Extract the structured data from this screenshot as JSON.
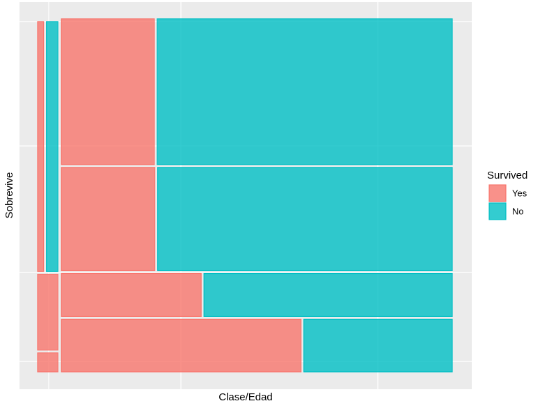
{
  "chart_data": {
    "type": "mosaic",
    "x_label": "Clase/Edad",
    "y_label": "Sobrevive",
    "legend_title": "Survived",
    "categories": [
      null,
      null
    ],
    "subcategories": [
      null,
      null,
      null,
      null
    ],
    "series": [
      {
        "name": "Yes",
        "color": "#F8766D",
        "values": [
          [
            0,
            27,
            24,
            6
          ],
          [
            212,
            151,
            94,
            197
          ]
        ]
      },
      {
        "name": "No",
        "color": "#00BFC4",
        "values": [
          [
            0,
            52,
            0,
            0
          ],
          [
            673,
            476,
            167,
            122
          ]
        ]
      }
    ],
    "legend": "right"
  }
}
